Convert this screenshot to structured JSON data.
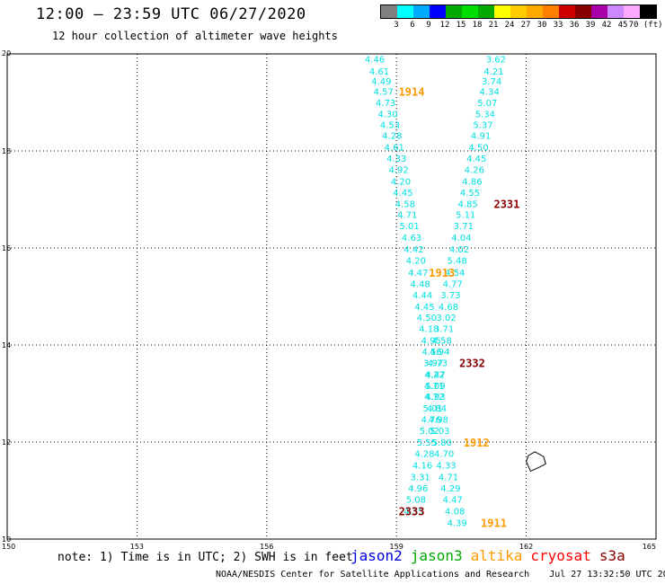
{
  "header": {
    "title": "12:00 — 23:59 UTC 06/27/2020",
    "subtitle": "12 hour collection of altimeter wave heights"
  },
  "colorbar": {
    "colors": [
      "#7f7f7f",
      "#00ffff",
      "#00aaff",
      "#0000ff",
      "#00aa00",
      "#00dd00",
      "#00aa00",
      "#ffff00",
      "#ffcc00",
      "#ffaa00",
      "#ff7f00",
      "#cc0000",
      "#880000",
      "#aa00aa",
      "#cc88ff",
      "#ffaaff",
      "#000000"
    ],
    "tick_labels": [
      "3",
      "6",
      "9",
      "12",
      "15",
      "18",
      "21",
      "24",
      "27",
      "30",
      "33",
      "36",
      "39",
      "42",
      "45",
      "70 (ft)"
    ]
  },
  "map": {
    "lon_labels": [
      "150",
      "153",
      "156",
      "159",
      "162",
      "165"
    ],
    "lat_labels": [
      "10",
      "12",
      "14",
      "16",
      "18",
      "20"
    ],
    "lon_range": [
      150,
      165
    ],
    "lat_range": [
      10,
      20
    ],
    "grid_lons": [
      153,
      156,
      159,
      162
    ],
    "grid_lats": [
      12,
      14,
      16,
      18
    ],
    "island": [
      [
        162.1,
        11.4
      ],
      [
        162.3,
        11.48
      ],
      [
        162.45,
        11.55
      ],
      [
        162.4,
        11.7
      ],
      [
        162.2,
        11.8
      ],
      [
        162.05,
        11.72
      ],
      [
        162.0,
        11.6
      ]
    ],
    "swh_color": "#00e0e0",
    "swh_tracks": [
      {
        "name": "track-a",
        "points": [
          [
            158.5,
            19.9,
            "4.46"
          ],
          [
            158.6,
            19.65,
            "4.61"
          ],
          [
            158.65,
            19.44,
            "4.49"
          ],
          [
            158.7,
            19.23,
            "4.57"
          ],
          [
            158.75,
            19.0,
            "4.73"
          ],
          [
            158.8,
            18.77,
            "4.30"
          ],
          [
            158.85,
            18.55,
            "4.53"
          ],
          [
            158.9,
            18.32,
            "4.28"
          ],
          [
            158.95,
            18.08,
            "4.61"
          ],
          [
            159.0,
            17.85,
            "4.33"
          ],
          [
            159.05,
            17.62,
            "4.92"
          ],
          [
            159.1,
            17.38,
            "4.20"
          ],
          [
            159.15,
            17.15,
            "4.45"
          ],
          [
            159.2,
            16.92,
            "4.58"
          ],
          [
            159.25,
            16.69,
            "4.71"
          ],
          [
            159.3,
            16.46,
            "5.01"
          ],
          [
            159.35,
            16.22,
            "4.63"
          ],
          [
            159.4,
            15.98,
            "4.42"
          ],
          [
            159.45,
            15.75,
            "4.20"
          ],
          [
            159.5,
            15.5,
            "4.47"
          ],
          [
            159.55,
            15.27,
            "4.48"
          ],
          [
            159.6,
            15.04,
            "4.44"
          ],
          [
            159.65,
            14.8,
            "4.45"
          ],
          [
            159.7,
            14.57,
            "4.50"
          ],
          [
            159.75,
            14.34,
            "4.18"
          ],
          [
            159.8,
            14.1,
            "4.95"
          ],
          [
            159.82,
            13.87,
            "4.56"
          ],
          [
            159.85,
            13.64,
            "3.97"
          ],
          [
            159.88,
            13.4,
            "4.22"
          ],
          [
            159.9,
            13.17,
            "5.09"
          ],
          [
            159.87,
            12.94,
            "4.72"
          ],
          [
            159.84,
            12.7,
            "5.01"
          ],
          [
            159.8,
            12.47,
            "4.76"
          ],
          [
            159.76,
            12.24,
            "5.02"
          ],
          [
            159.7,
            12.0,
            "5.55"
          ],
          [
            159.65,
            11.77,
            "4.28"
          ],
          [
            159.6,
            11.53,
            "4.16"
          ],
          [
            159.55,
            11.29,
            "3.31"
          ],
          [
            159.5,
            11.06,
            "4.96"
          ],
          [
            159.45,
            10.82,
            "5.08"
          ],
          [
            159.4,
            10.58,
            "4.35"
          ]
        ]
      },
      {
        "name": "track-b",
        "points": [
          [
            161.3,
            19.9,
            "3.62"
          ],
          [
            161.25,
            19.65,
            "4.21"
          ],
          [
            161.2,
            19.44,
            "3.74"
          ],
          [
            161.15,
            19.23,
            "4.34"
          ],
          [
            161.1,
            19.0,
            "5.07"
          ],
          [
            161.05,
            18.77,
            "5.34"
          ],
          [
            161.0,
            18.55,
            "5.37"
          ],
          [
            160.95,
            18.32,
            "4.91"
          ],
          [
            160.9,
            18.08,
            "4.50"
          ],
          [
            160.85,
            17.85,
            "4.45"
          ],
          [
            160.8,
            17.62,
            "4.26"
          ],
          [
            160.75,
            17.38,
            "4.86"
          ],
          [
            160.7,
            17.15,
            "4.55"
          ],
          [
            160.65,
            16.92,
            "4.85"
          ],
          [
            160.6,
            16.69,
            "5.11"
          ],
          [
            160.55,
            16.46,
            "3.71"
          ],
          [
            160.5,
            16.22,
            "4.04"
          ],
          [
            160.45,
            15.98,
            "4.02"
          ],
          [
            160.4,
            15.75,
            "5.48"
          ],
          [
            160.35,
            15.5,
            "4.54"
          ],
          [
            160.3,
            15.27,
            "4.77"
          ],
          [
            160.25,
            15.04,
            "3.73"
          ],
          [
            160.2,
            14.8,
            "4.68"
          ],
          [
            160.15,
            14.57,
            "3.02"
          ],
          [
            160.1,
            14.34,
            "3.71"
          ],
          [
            160.05,
            14.1,
            "4.58"
          ],
          [
            160.0,
            13.87,
            "4.94"
          ],
          [
            159.95,
            13.64,
            "4.73"
          ],
          [
            159.9,
            13.4,
            "4.47"
          ],
          [
            159.87,
            13.17,
            "4.71"
          ],
          [
            159.9,
            12.94,
            "4.93"
          ],
          [
            159.93,
            12.7,
            "4.84"
          ],
          [
            159.97,
            12.47,
            "4.98"
          ],
          [
            160.0,
            12.24,
            "5.03"
          ],
          [
            160.05,
            12.0,
            "5.80"
          ],
          [
            160.1,
            11.77,
            "4.70"
          ],
          [
            160.15,
            11.53,
            "4.33"
          ],
          [
            160.2,
            11.29,
            "4.71"
          ],
          [
            160.25,
            11.06,
            "4.29"
          ],
          [
            160.3,
            10.82,
            "4.47"
          ],
          [
            160.35,
            10.58,
            "4.08"
          ],
          [
            160.4,
            10.34,
            "4.39"
          ]
        ]
      }
    ],
    "time_labels": [
      {
        "text": "1914",
        "lon": 159.35,
        "lat": 19.23,
        "color": "#ff9900"
      },
      {
        "text": "2331",
        "lon": 161.55,
        "lat": 16.92,
        "color": "#880000"
      },
      {
        "text": "1913",
        "lon": 160.05,
        "lat": 15.5,
        "color": "#ff9900"
      },
      {
        "text": "2332",
        "lon": 160.75,
        "lat": 13.64,
        "color": "#880000"
      },
      {
        "text": "1912",
        "lon": 160.85,
        "lat": 12.0,
        "color": "#ff9900"
      },
      {
        "text": "2333",
        "lon": 159.35,
        "lat": 10.58,
        "color": "#880000"
      },
      {
        "text": "1911",
        "lon": 161.25,
        "lat": 10.34,
        "color": "#ff9900"
      }
    ]
  },
  "footer": {
    "note": "note: 1) Time is in UTC; 2) SWH is in feet",
    "legend": [
      {
        "name": "jason2",
        "color": "#0000dd"
      },
      {
        "name": "jason3",
        "color": "#00aa00"
      },
      {
        "name": "altika",
        "color": "#ff9900"
      },
      {
        "name": "cryosat",
        "color": "#ff0000"
      },
      {
        "name": "s3a",
        "color": "#880000"
      }
    ],
    "credit": "NOAA/NESDIS Center for Satellite Applications and Research",
    "timestamp": "Jul 27 13:32:50 UTC 2020"
  }
}
